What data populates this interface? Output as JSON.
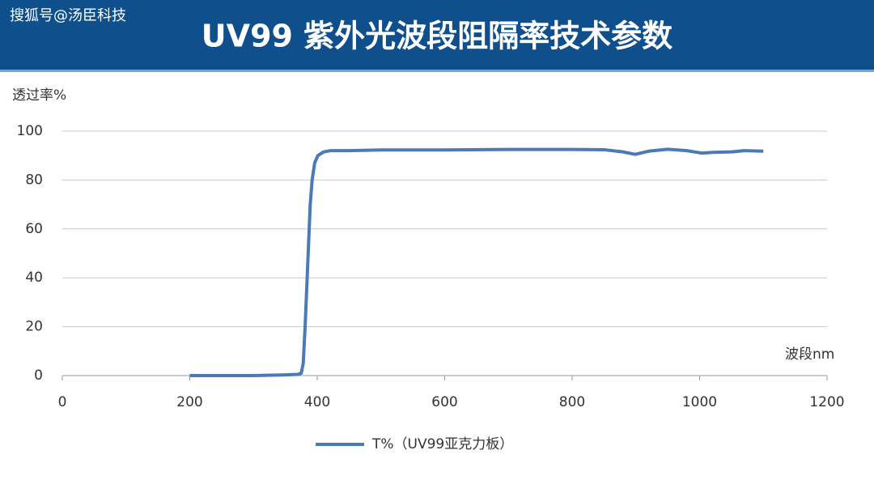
{
  "watermark": "搜狐号@汤臣科技",
  "chart_data": {
    "type": "line",
    "title": "UV99 紫外光波段阻隔率技术参数",
    "y_label": "透过率%",
    "x_label": "波段nm",
    "x": [
      200,
      250,
      300,
      350,
      370,
      375,
      378,
      381,
      385,
      389,
      392,
      396,
      401,
      410,
      420,
      450,
      500,
      600,
      700,
      800,
      850,
      880,
      899,
      920,
      950,
      980,
      1004,
      1020,
      1050,
      1070,
      1100
    ],
    "series": [
      {
        "name": "T%（UV99亚克力板）",
        "color": "#4a7ab7",
        "values": [
          0,
          0,
          0,
          0.3,
          0.5,
          1,
          5,
          20,
          45,
          70,
          80,
          87,
          90,
          91.5,
          92,
          92,
          92.3,
          92.3,
          92.5,
          92.5,
          92.4,
          91.5,
          90.5,
          91.8,
          92.6,
          92,
          91,
          91.3,
          91.5,
          92,
          91.8
        ]
      }
    ],
    "xlim": [
      0,
      1200
    ],
    "xticks": [
      0,
      200,
      400,
      600,
      800,
      1000,
      1200
    ],
    "ylim": [
      0,
      100
    ],
    "yticks": [
      0,
      20,
      40,
      60,
      80,
      100
    ],
    "grid": true,
    "legend": "bottom"
  }
}
